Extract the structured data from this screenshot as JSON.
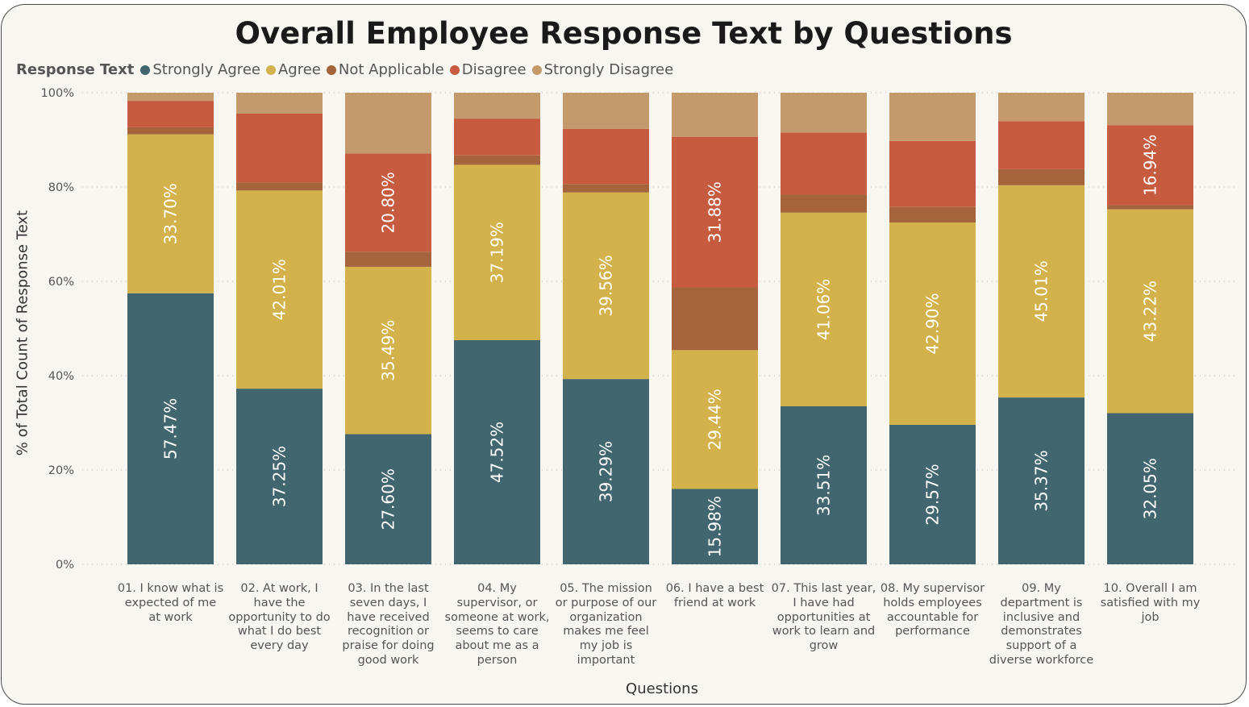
{
  "chart_data": {
    "type": "bar",
    "stacked": "100%",
    "title": "Overall Employee Response Text by Questions",
    "xlabel": "Questions",
    "ylabel": "% of Total Count of Response Text",
    "ylim": [
      0,
      100
    ],
    "yticks": [
      "0%",
      "20%",
      "40%",
      "60%",
      "80%",
      "100%"
    ],
    "grid": true,
    "legend": {
      "title": "Response Text",
      "placement": "top-left",
      "items": [
        "Strongly Agree",
        "Agree",
        "Not Applicable",
        "Disagree",
        "Strongly Disagree"
      ]
    },
    "categories": [
      "01. I know what is expected of me at work",
      "02. At work, I have the opportunity to do what I do best every day",
      "03. In the last seven days, I have received recognition or praise for doing good work",
      "04. My supervisor, or someone at work, seems to care about me as a person",
      "05. The mission or purpose of our organization makes me feel my job is important",
      "06. I have a best friend at work",
      "07. This last year, I have had opportunities at work to learn and grow",
      "08. My supervisor holds employees accountable for performance",
      "09. My department is inclusive and demonstrates support of a diverse workforce",
      "10. Overall I am satisfied with my job"
    ],
    "series": [
      {
        "name": "Strongly Agree",
        "color": "#41666f",
        "values": [
          57.47,
          37.25,
          27.6,
          47.52,
          39.29,
          15.98,
          33.51,
          29.57,
          35.37,
          32.05
        ],
        "labels": [
          "57.47%",
          "37.25%",
          "27.60%",
          "47.52%",
          "39.29%",
          "15.98%",
          "33.51%",
          "29.57%",
          "35.37%",
          "32.05%"
        ]
      },
      {
        "name": "Agree",
        "color": "#d3b24c",
        "values": [
          33.7,
          42.01,
          35.49,
          37.19,
          39.56,
          29.44,
          41.06,
          42.9,
          45.01,
          43.22
        ],
        "labels": [
          "33.70%",
          "42.01%",
          "35.49%",
          "37.19%",
          "39.56%",
          "29.44%",
          "41.06%",
          "42.90%",
          "45.01%",
          "43.22%"
        ]
      },
      {
        "name": "Not Applicable",
        "color": "#a5643b",
        "values": [
          1.5,
          1.7,
          3.2,
          2.0,
          1.8,
          13.3,
          3.8,
          3.3,
          3.4,
          0.9
        ],
        "labels": [
          "",
          "",
          "",
          "",
          "",
          "",
          "",
          "",
          "",
          ""
        ]
      },
      {
        "name": "Disagree",
        "color": "#c65b40",
        "values": [
          5.6,
          14.6,
          20.8,
          7.8,
          11.7,
          31.88,
          13.2,
          14.0,
          10.2,
          16.94
        ],
        "labels": [
          "",
          "",
          "20.80%",
          "",
          "",
          "31.88%",
          "",
          "",
          "",
          "16.94%"
        ]
      },
      {
        "name": "Strongly Disagree",
        "color": "#c49a6c",
        "values": [
          1.73,
          4.44,
          12.91,
          5.49,
          7.65,
          9.4,
          8.43,
          10.23,
          6.02,
          6.89
        ],
        "labels": [
          "",
          "",
          "",
          "",
          "",
          "",
          "",
          "",
          "",
          ""
        ]
      }
    ]
  }
}
